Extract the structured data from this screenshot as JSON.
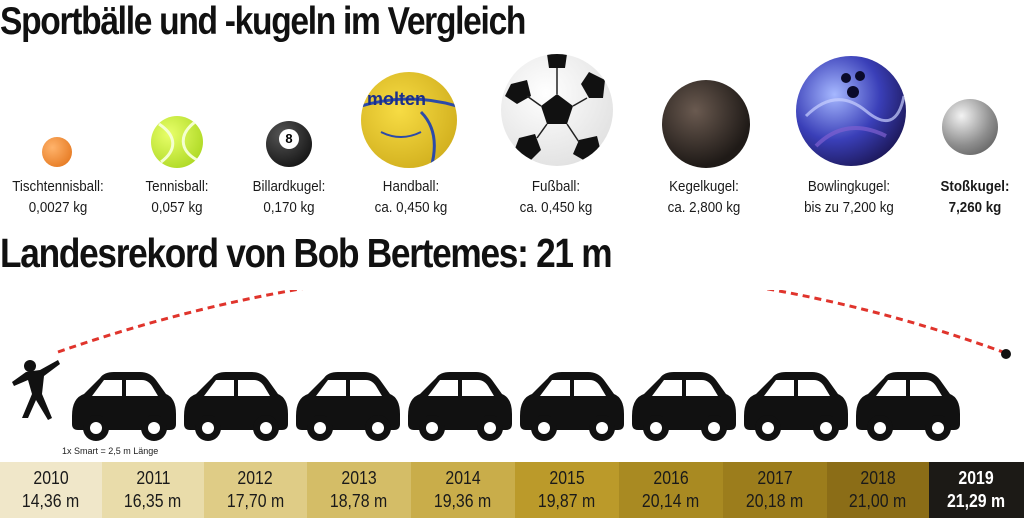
{
  "title": "Sportbälle und -kugeln im Vergleich",
  "subtitle": "Landesrekord von Bob Bertemes: 21 m",
  "balls": [
    {
      "name": "Tischtennisball:",
      "weight": "0,0027 kg",
      "icon": "table-tennis-ball-icon",
      "color": "#f08a2e"
    },
    {
      "name": "Tennisball:",
      "weight": "0,057 kg",
      "icon": "tennis-ball-icon",
      "color": "#b9e12b"
    },
    {
      "name": "Billardkugel:",
      "weight": "0,170 kg",
      "icon": "billiard-ball-icon",
      "color": "#111111"
    },
    {
      "name": "Handball:",
      "weight": "ca. 0,450 kg",
      "icon": "handball-icon",
      "color": "#e6c52a",
      "brand": "molten"
    },
    {
      "name": "Fußball:",
      "weight": "ca. 0,450 kg",
      "icon": "soccer-ball-icon",
      "color": "#ffffff"
    },
    {
      "name": "Kegelkugel:",
      "weight": "ca. 2,800 kg",
      "icon": "bowling-pin-ball-icon",
      "color": "#3a302a"
    },
    {
      "name": "Bowlingkugel:",
      "weight": "bis zu 7,200 kg",
      "icon": "bowling-ball-icon",
      "color": "#3b3fb0"
    },
    {
      "name": "Stoßkugel:",
      "weight": "7,260 kg",
      "icon": "shot-put-icon",
      "color": "#9a9a9a"
    }
  ],
  "smart_note": "1x Smart = 2,5 m Länge",
  "records": [
    {
      "year": "2010",
      "distance": "14,36 m",
      "color": "#f0e7c9"
    },
    {
      "year": "2011",
      "distance": "16,35 m",
      "color": "#e9dcaa"
    },
    {
      "year": "2012",
      "distance": "17,70 m",
      "color": "#dfcc86"
    },
    {
      "year": "2013",
      "distance": "18,78 m",
      "color": "#d4bd67"
    },
    {
      "year": "2014",
      "distance": "19,36 m",
      "color": "#c9ad4a"
    },
    {
      "year": "2015",
      "distance": "19,87 m",
      "color": "#bb9a2a"
    },
    {
      "year": "2016",
      "distance": "20,14 m",
      "color": "#a98a22"
    },
    {
      "year": "2017",
      "distance": "20,18 m",
      "color": "#9c7d1c"
    },
    {
      "year": "2018",
      "distance": "21,00 m",
      "color": "#8b6d17"
    },
    {
      "year": "2019",
      "distance": "21,29 m",
      "color": "#1c1a16"
    }
  ],
  "trajectory_color": "#e0342c"
}
